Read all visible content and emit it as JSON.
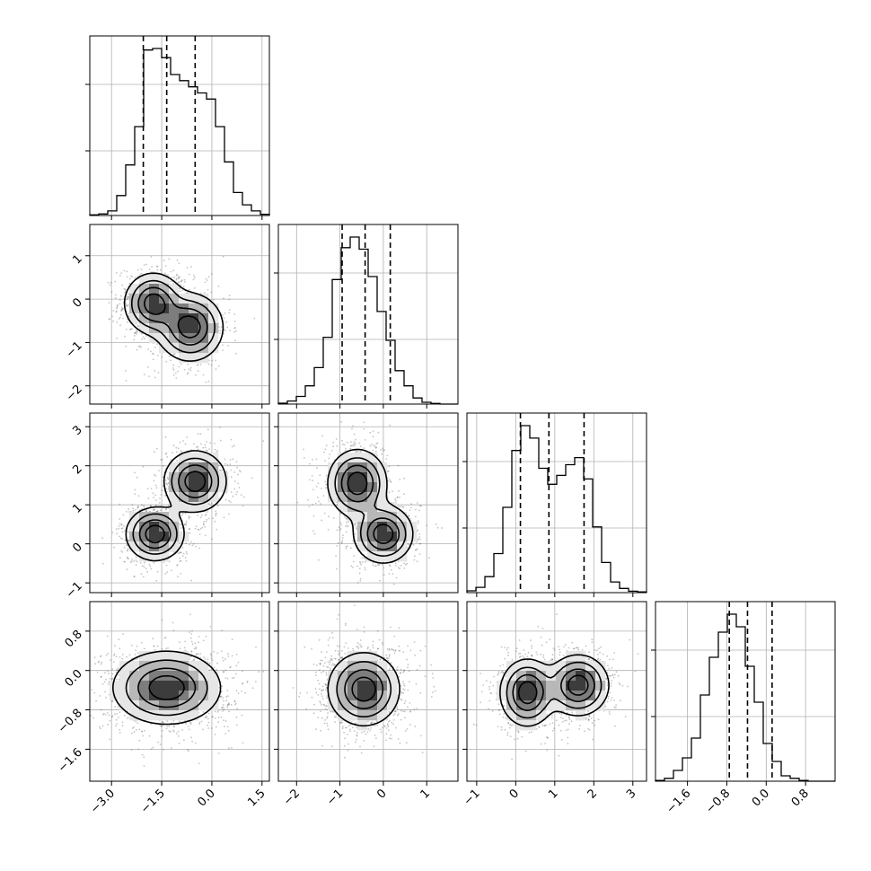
{
  "chart_data": {
    "type": "corner",
    "grid": true,
    "dims": [
      {
        "ticks": [
          -3.0,
          -1.5,
          0.0,
          1.5
        ],
        "tick_labels": [
          "−3.0",
          "−1.5",
          "0.0",
          "1.5"
        ],
        "lim": [
          -3.65,
          1.72
        ]
      },
      {
        "ticks": [
          -2,
          -1,
          0,
          1
        ],
        "tick_labels": [
          "−2",
          "−1",
          "0",
          "1"
        ],
        "lim": [
          -2.42,
          1.72
        ]
      },
      {
        "ticks": [
          -1,
          0,
          1,
          2,
          3
        ],
        "tick_labels": [
          "−1",
          "0",
          "1",
          "2",
          "3"
        ],
        "lim": [
          -1.25,
          3.35
        ]
      },
      {
        "ticks": [
          -1.6,
          -0.8,
          0.0,
          0.8
        ],
        "tick_labels": [
          "−1.6",
          "−0.8",
          "0.0",
          "0.8"
        ],
        "lim": [
          -2.25,
          1.4
        ]
      }
    ],
    "hist_lines": [
      [
        -2.05,
        -1.35,
        -0.5
      ],
      [
        -0.95,
        -0.42,
        0.16
      ],
      [
        0.12,
        0.85,
        1.75
      ],
      [
        -0.75,
        -0.38,
        0.12
      ]
    ],
    "histograms": [
      {
        "bin_start": -3.65,
        "bin_width": 0.2685,
        "counts": [
          2,
          5,
          15,
          65,
          165,
          290,
          540,
          545,
          515,
          460,
          440,
          420,
          400,
          380,
          290,
          175,
          75,
          35,
          15,
          4
        ]
      },
      {
        "bin_start": -2.42,
        "bin_width": 0.207,
        "counts": [
          3,
          10,
          25,
          60,
          120,
          220,
          410,
          515,
          550,
          510,
          420,
          305,
          210,
          110,
          60,
          20,
          6,
          2,
          0,
          0
        ]
      },
      {
        "bin_start": -1.25,
        "bin_width": 0.23,
        "counts": [
          5,
          15,
          45,
          110,
          240,
          400,
          470,
          435,
          350,
          305,
          330,
          360,
          380,
          320,
          185,
          85,
          30,
          12,
          4,
          2
        ]
      },
      {
        "bin_start": -2.25,
        "bin_width": 0.1825,
        "counts": [
          2,
          8,
          30,
          65,
          120,
          240,
          345,
          415,
          465,
          430,
          320,
          220,
          105,
          55,
          15,
          8,
          2,
          0,
          0,
          0
        ]
      }
    ],
    "panels": [
      {
        "row": 1,
        "col": 0,
        "blobs": [
          {
            "cx": -1.75,
            "cy": -0.1,
            "sx": 0.42,
            "sy": 0.34,
            "w": 0.5
          },
          {
            "cx": -0.65,
            "cy": -0.65,
            "sx": 0.48,
            "sy": 0.38,
            "w": 0.5
          }
        ]
      },
      {
        "row": 2,
        "col": 0,
        "blobs": [
          {
            "cx": -1.7,
            "cy": 0.25,
            "sx": 0.42,
            "sy": 0.33,
            "w": 0.5
          },
          {
            "cx": -0.5,
            "cy": 1.6,
            "sx": 0.45,
            "sy": 0.38,
            "w": 0.5
          }
        ]
      },
      {
        "row": 2,
        "col": 1,
        "blobs": [
          {
            "cx": -0.6,
            "cy": 1.55,
            "sx": 0.33,
            "sy": 0.42,
            "w": 0.5
          },
          {
            "cx": 0.0,
            "cy": 0.25,
            "sx": 0.33,
            "sy": 0.36,
            "w": 0.5
          }
        ]
      },
      {
        "row": 3,
        "col": 0,
        "blobs": [
          {
            "cx": -1.35,
            "cy": -0.35,
            "sx": 0.78,
            "sy": 0.36,
            "w": 1.0
          }
        ]
      },
      {
        "row": 3,
        "col": 1,
        "blobs": [
          {
            "cx": -0.45,
            "cy": -0.38,
            "sx": 0.4,
            "sy": 0.36,
            "w": 1.0
          }
        ]
      },
      {
        "row": 3,
        "col": 2,
        "blobs": [
          {
            "cx": 0.3,
            "cy": -0.45,
            "sx": 0.34,
            "sy": 0.33,
            "w": 0.5
          },
          {
            "cx": 1.6,
            "cy": -0.3,
            "sx": 0.38,
            "sy": 0.3,
            "w": 0.5
          }
        ]
      }
    ],
    "contour_levels": [
      0.12,
      0.3,
      0.55,
      0.8
    ]
  }
}
